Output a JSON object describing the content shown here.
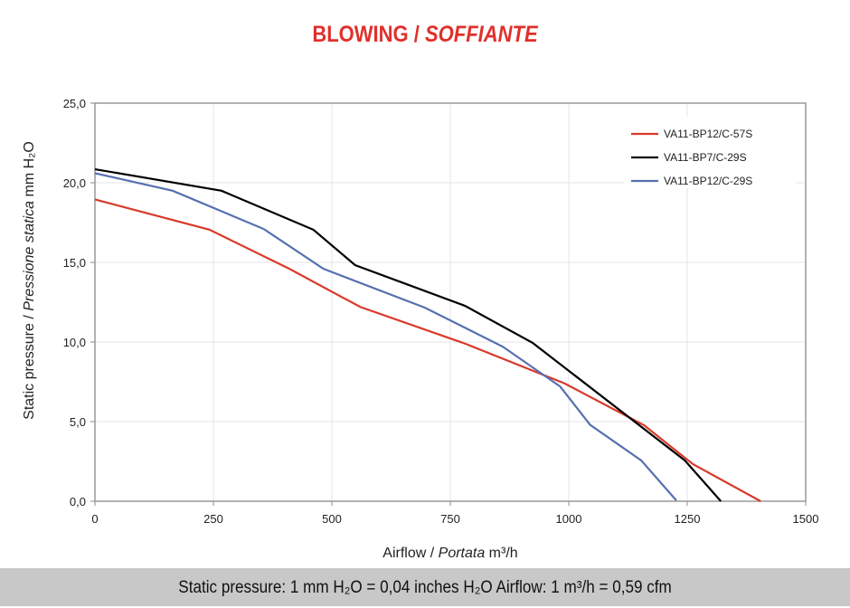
{
  "chart_data": {
    "type": "line",
    "title": "BLOWING /",
    "title_italic": "SOFFIANTE",
    "xlabel": "Airflow /",
    "xlabel_italic": "Portata",
    "xlabel_unit": "m³/h",
    "ylabel": "Static pressure /",
    "ylabel_italic": "Pressione statica",
    "ylabel_unit": "mm H₂O",
    "xlim": [
      0,
      1500
    ],
    "ylim": [
      0,
      25
    ],
    "xticks": [
      0,
      250,
      500,
      750,
      1000,
      1250,
      1500
    ],
    "xtick_labels": [
      "0",
      "250",
      "500",
      "750",
      "1000",
      "1250",
      "1500"
    ],
    "yticks": [
      0,
      5,
      10,
      15,
      20,
      25
    ],
    "ytick_labels": [
      "0,0",
      "5,0",
      "10,0",
      "15,0",
      "20,0",
      "25,0"
    ],
    "grid": true,
    "legend_position": "top-right",
    "series": [
      {
        "name": "VA11-BP12/C-57S",
        "color": "#d93a2b",
        "x": [
          0,
          242,
          410,
          560,
          781,
          991,
          1159,
          1262,
          1405
        ],
        "y": [
          18.95,
          17.05,
          14.6,
          12.2,
          9.9,
          7.4,
          4.77,
          2.33,
          0
        ]
      },
      {
        "name": "VA11-BP7/C-29S",
        "color": "#000000",
        "x": [
          0,
          267,
          461,
          549,
          781,
          924,
          1245,
          1321
        ],
        "y": [
          20.85,
          19.5,
          17.05,
          14.83,
          12.27,
          9.94,
          2.56,
          0
        ]
      },
      {
        "name": "VA11-BP12/C-29S",
        "color": "#5570b0",
        "x": [
          0,
          164,
          356,
          482,
          696,
          861,
          982,
          1045,
          1153,
          1227
        ],
        "y": [
          20.6,
          19.5,
          17.1,
          14.6,
          12.16,
          9.7,
          7.2,
          4.8,
          2.56,
          0.05
        ]
      }
    ]
  },
  "footer": {
    "text": "Static pressure: 1 mm H₂O = 0,04 inches H₂O      Airflow: 1 m³/h = 0,59 cfm"
  }
}
